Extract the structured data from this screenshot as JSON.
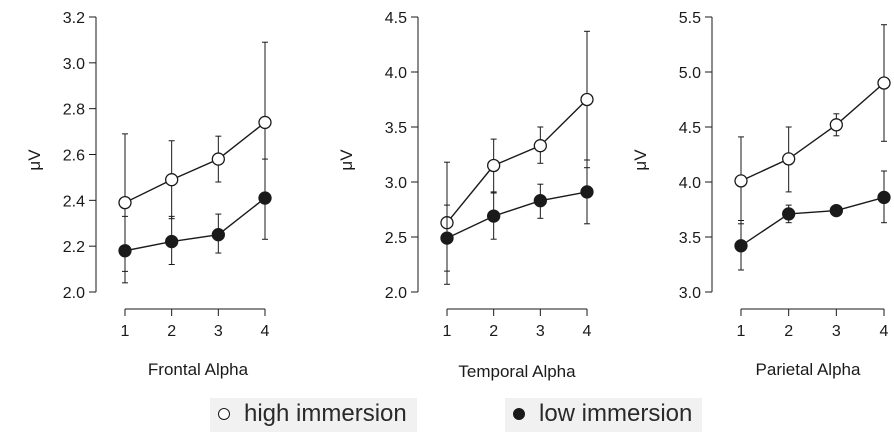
{
  "chart_data": [
    {
      "type": "line",
      "title": "",
      "xlabel": "Frontal Alpha",
      "ylabel": "μV",
      "x": [
        1,
        2,
        3,
        4
      ],
      "ylim": [
        2.0,
        3.2
      ],
      "yticks": [
        "2.0",
        "2.2",
        "2.4",
        "2.6",
        "2.8",
        "3.0",
        "3.2"
      ],
      "yticks_values": [
        2.0,
        2.2,
        2.4,
        2.6,
        2.8,
        3.0,
        3.2
      ],
      "series": [
        {
          "name": "high immersion",
          "marker": "open",
          "values": [
            2.39,
            2.49,
            2.58,
            2.74
          ],
          "err_low": [
            2.09,
            2.32,
            2.48,
            2.4
          ],
          "err_high": [
            2.69,
            2.66,
            2.68,
            3.09
          ]
        },
        {
          "name": "low immersion",
          "marker": "filled",
          "values": [
            2.18,
            2.22,
            2.25,
            2.41
          ],
          "err_low": [
            2.04,
            2.12,
            2.17,
            2.23
          ],
          "err_high": [
            2.33,
            2.33,
            2.34,
            2.58
          ]
        }
      ]
    },
    {
      "type": "line",
      "title": "",
      "xlabel": "Temporal Alpha",
      "ylabel": "μV",
      "x": [
        1,
        2,
        3,
        4
      ],
      "ylim": [
        2.0,
        4.5
      ],
      "yticks": [
        "2.0",
        "2.5",
        "3.0",
        "3.5",
        "4.0",
        "4.5"
      ],
      "yticks_values": [
        2.0,
        2.5,
        3.0,
        3.5,
        4.0,
        4.5
      ],
      "series": [
        {
          "name": "high immersion",
          "marker": "open",
          "values": [
            2.63,
            3.15,
            3.33,
            3.75
          ],
          "err_low": [
            2.07,
            2.9,
            3.17,
            3.13
          ],
          "err_high": [
            3.18,
            3.39,
            3.5,
            4.37
          ]
        },
        {
          "name": "low immersion",
          "marker": "filled",
          "values": [
            2.49,
            2.69,
            2.83,
            2.91
          ],
          "err_low": [
            2.19,
            2.48,
            2.67,
            2.62
          ],
          "err_high": [
            2.79,
            2.91,
            2.98,
            3.2
          ]
        }
      ]
    },
    {
      "type": "line",
      "title": "",
      "xlabel": "Parietal Alpha",
      "ylabel": "μV",
      "x": [
        1,
        2,
        3,
        4
      ],
      "ylim": [
        3.0,
        5.5
      ],
      "yticks": [
        "3.0",
        "3.5",
        "4.0",
        "4.5",
        "5.0",
        "5.5"
      ],
      "yticks_values": [
        3.0,
        3.5,
        4.0,
        4.5,
        5.0,
        5.5
      ],
      "series": [
        {
          "name": "high immersion",
          "marker": "open",
          "values": [
            4.01,
            4.21,
            4.52,
            4.9
          ],
          "err_low": [
            3.62,
            3.91,
            4.42,
            4.37
          ],
          "err_high": [
            4.41,
            4.5,
            4.62,
            5.43
          ]
        },
        {
          "name": "low immersion",
          "marker": "filled",
          "values": [
            3.42,
            3.71,
            3.74,
            3.86
          ],
          "err_low": [
            3.2,
            3.63,
            3.7,
            3.63
          ],
          "err_high": [
            3.65,
            3.79,
            3.78,
            4.1
          ]
        }
      ]
    }
  ],
  "legend": {
    "items": [
      {
        "label": "high immersion",
        "marker": "open"
      },
      {
        "label": "low immersion",
        "marker": "filled"
      }
    ],
    "placement": "bottom"
  },
  "colors": {
    "line": "#1a1a1a",
    "open_fill": "#ffffff",
    "filled": "#1a1a1a"
  }
}
